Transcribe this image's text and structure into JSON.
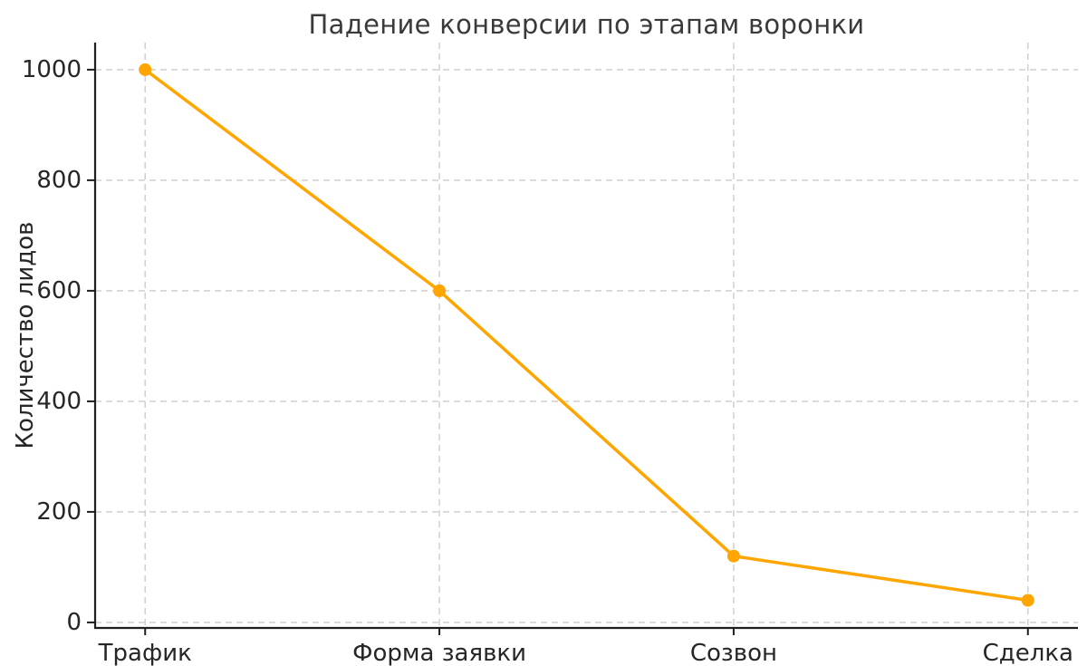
{
  "chart_data": {
    "type": "line",
    "title": "Падение конверсии по этапам воронки",
    "xlabel": "",
    "ylabel": "Количество лидов",
    "categories": [
      "Трафик",
      "Форма заявки",
      "Созвон",
      "Сделка"
    ],
    "series": [
      {
        "name": "Количество лидов",
        "values": [
          1000,
          600,
          120,
          40
        ]
      }
    ],
    "yticks": [
      0,
      200,
      400,
      600,
      800,
      1000
    ],
    "ylim": [
      -10,
      1049
    ],
    "xlim": [
      -0.17,
      3.17
    ],
    "grid": true,
    "grid_style": "dashed",
    "legend": "none",
    "marker": "circle",
    "colors": {
      "line": "#FFA500",
      "marker": "#FFA500",
      "grid": "#cccccc",
      "axis": "#1f1f1f",
      "tick_label": "#262626",
      "title": "#3a3a3a",
      "background": "#ffffff"
    },
    "line_width": 3.5,
    "marker_radius": 7,
    "tick_font_size": 26
  }
}
